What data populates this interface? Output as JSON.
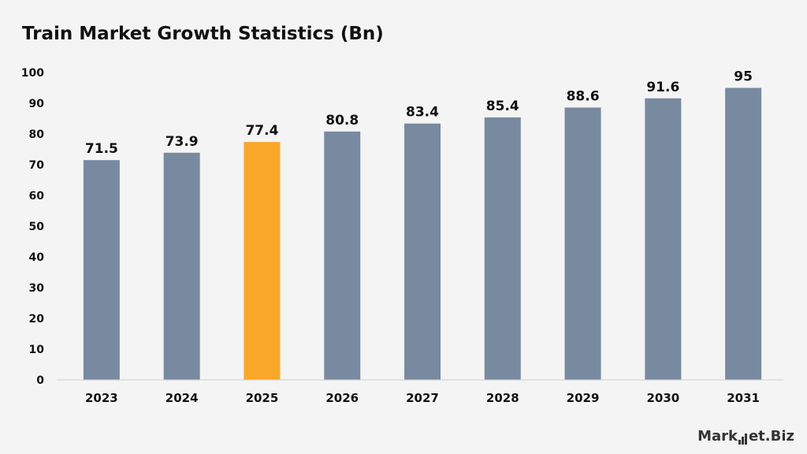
{
  "chart_data": {
    "type": "bar",
    "title": "Train Market Growth Statistics (Bn)",
    "xlabel": "",
    "ylabel": "",
    "categories": [
      "2023",
      "2024",
      "2025",
      "2026",
      "2027",
      "2028",
      "2029",
      "2030",
      "2031"
    ],
    "values": [
      71.5,
      73.9,
      77.4,
      80.8,
      83.4,
      85.4,
      88.6,
      91.6,
      95
    ],
    "value_labels": [
      "71.5",
      "73.9",
      "77.4",
      "80.8",
      "83.4",
      "85.4",
      "88.6",
      "91.6",
      "95"
    ],
    "ylim": [
      0,
      100
    ],
    "yticks": [
      "0",
      "10",
      "20",
      "30",
      "40",
      "50",
      "60",
      "70",
      "80",
      "90",
      "100"
    ],
    "grid": false,
    "highlight_index": 2,
    "colors": {
      "bar": "#788a9f",
      "highlight": "#f9a729",
      "axis": "#d0d0d0"
    }
  },
  "brand": {
    "prefix": "Mark",
    "suffix": "et.Biz",
    "icon": "bar-chart-logo-icon"
  }
}
